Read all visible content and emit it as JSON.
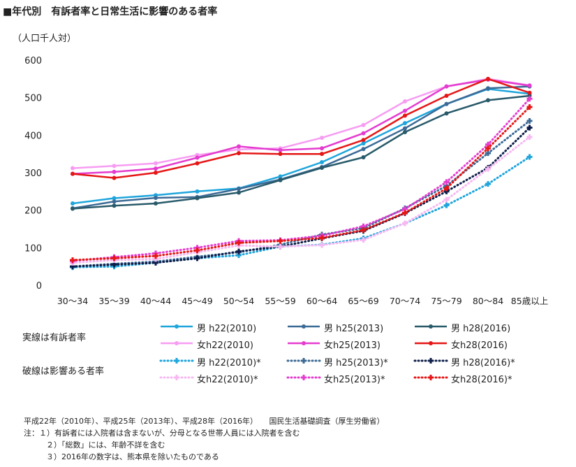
{
  "title": "■年代別　有訴者率と日常生活に影響のある者率",
  "unit_label": "（人口千人対）",
  "chart_data": {
    "type": "line",
    "title": "■年代別　有訴者率と日常生活に影響のある者率",
    "ylabel": "（人口千人対）",
    "xlabel": "",
    "ylim": [
      0,
      600
    ],
    "yticks": [
      0,
      100,
      200,
      300,
      400,
      500,
      600
    ],
    "grid": false,
    "legend": "bottom",
    "categories": [
      "30～34",
      "35～39",
      "40～44",
      "45～49",
      "50～54",
      "55～59",
      "60～64",
      "65～69",
      "70～74",
      "75～79",
      "80～84",
      "85歳以上"
    ],
    "series": [
      {
        "name": "男 h22(2010)",
        "color": "#1ea5dc",
        "style": "solid",
        "marker": "circle",
        "values": [
          218,
          232,
          240,
          250,
          258,
          290,
          328,
          378,
          432,
          483,
          523,
          510
        ]
      },
      {
        "name": "男 h25(2013)",
        "color": "#3c6a96",
        "style": "solid",
        "marker": "circle",
        "values": [
          205,
          223,
          233,
          235,
          257,
          282,
          315,
          363,
          418,
          483,
          525,
          530
        ]
      },
      {
        "name": "男 h28(2016)",
        "color": "#285a6a",
        "style": "solid",
        "marker": "circle",
        "values": [
          204,
          212,
          218,
          232,
          247,
          280,
          313,
          341,
          408,
          458,
          493,
          505
        ]
      },
      {
        "name": "女h22(2010)",
        "color": "#f79cf2",
        "style": "solid",
        "marker": "circle",
        "values": [
          312,
          318,
          325,
          347,
          362,
          365,
          393,
          427,
          490,
          530,
          550,
          533
        ]
      },
      {
        "name": "女h25(2013)",
        "color": "#e43ccf",
        "style": "solid",
        "marker": "circle",
        "values": [
          297,
          302,
          311,
          340,
          370,
          360,
          365,
          405,
          465,
          530,
          548,
          532
        ]
      },
      {
        "name": "女h28(2016)",
        "color": "#e51616",
        "style": "solid",
        "marker": "circle",
        "values": [
          297,
          286,
          300,
          325,
          352,
          350,
          350,
          387,
          452,
          505,
          550,
          513
        ]
      },
      {
        "name": "男 h22(2010)*",
        "color": "#1ea5dc",
        "style": "dotted",
        "marker": "cross",
        "values": [
          48,
          50,
          60,
          72,
          80,
          103,
          108,
          125,
          165,
          213,
          270,
          342
        ]
      },
      {
        "name": "男 h25(2013)*",
        "color": "#3c6a96",
        "style": "dotted",
        "marker": "cross",
        "values": [
          50,
          57,
          63,
          76,
          88,
          108,
          135,
          152,
          205,
          265,
          352,
          438
        ]
      },
      {
        "name": "男 h28(2016)*",
        "color": "#0d1d4a",
        "style": "dotted",
        "marker": "cross",
        "values": [
          50,
          55,
          60,
          72,
          90,
          103,
          125,
          145,
          192,
          250,
          313,
          420
        ]
      },
      {
        "name": "女h22(2010)*",
        "color": "#f7b8f2",
        "style": "dotted",
        "marker": "cross",
        "values": [
          60,
          67,
          70,
          88,
          106,
          103,
          107,
          121,
          165,
          228,
          310,
          395
        ]
      },
      {
        "name": "女h25(2013)*",
        "color": "#e43ccf",
        "style": "dotted",
        "marker": "cross",
        "values": [
          65,
          75,
          85,
          100,
          118,
          120,
          132,
          157,
          203,
          275,
          375,
          497
        ]
      },
      {
        "name": "女h28(2016)*",
        "color": "#e51616",
        "style": "dotted",
        "marker": "cross",
        "values": [
          67,
          72,
          78,
          93,
          113,
          118,
          126,
          147,
          193,
          258,
          365,
          475
        ]
      }
    ]
  },
  "legend": {
    "solid_label": "実線は有訴者率",
    "dashed_label": "破線は影響ある者率"
  },
  "source": "平成22年（2010年）、平成25年（2013年）、平成28年（2016年）　　国民生活基礎調査（厚生労働省）",
  "notes": [
    "注：１）有訴者には入院者は含まないが、分母となる世帯人員には入院者を含む",
    "２）「総数」には、年齢不詳を含む",
    "３）2016年の数字は、熊本県を除いたものである"
  ]
}
